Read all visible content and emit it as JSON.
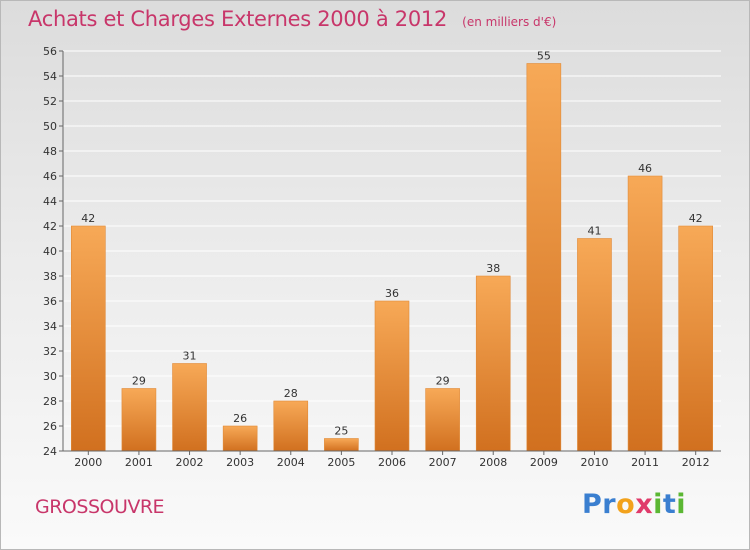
{
  "header": {
    "title": "Achats et Charges Externes 2000 à 2012",
    "unit": "(en milliers d'€)"
  },
  "footer": {
    "commune": "GROSSOUVRE",
    "logo_letters": [
      "P",
      "r",
      "o",
      "x",
      "i",
      "t",
      "i"
    ]
  },
  "colors": {
    "accent": "#c8366a",
    "bar_top": "#f7a957",
    "bar_bottom": "#d1701f",
    "grid": "#ffffff"
  },
  "chart_data": {
    "type": "bar",
    "categories": [
      "2000",
      "2001",
      "2002",
      "2003",
      "2004",
      "2005",
      "2006",
      "2007",
      "2008",
      "2009",
      "2010",
      "2011",
      "2012"
    ],
    "values": [
      42,
      29,
      31,
      26,
      28,
      25,
      36,
      29,
      38,
      55,
      41,
      46,
      42
    ],
    "title": "Achats et Charges Externes 2000 à 2012",
    "xlabel": "",
    "ylabel": "",
    "ylim": [
      24,
      56
    ],
    "yticks": [
      24,
      26,
      28,
      30,
      32,
      34,
      36,
      38,
      40,
      42,
      44,
      46,
      48,
      50,
      52,
      54,
      56
    ],
    "grid": true,
    "data_labels": true
  }
}
